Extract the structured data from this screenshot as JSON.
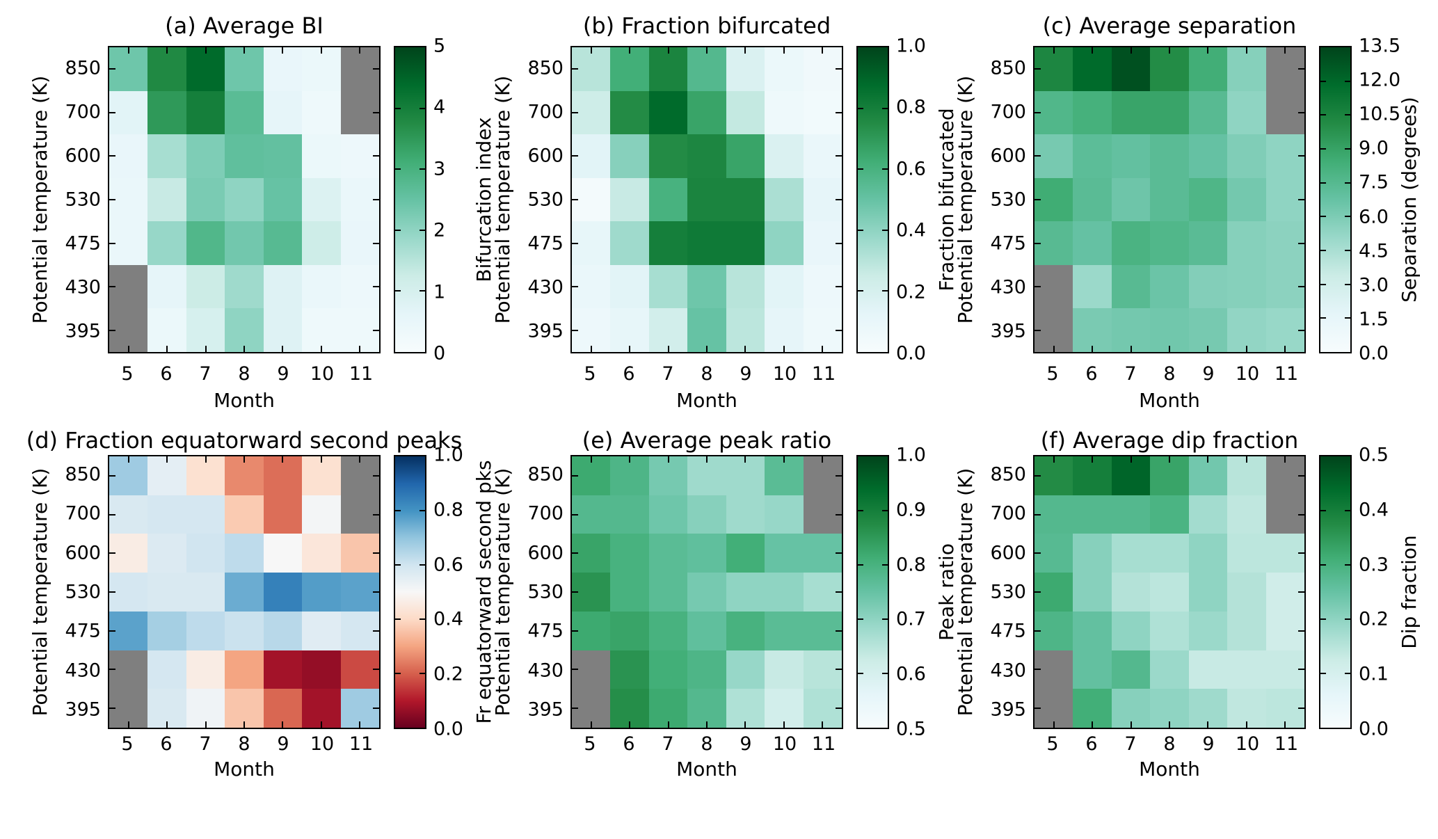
{
  "figure": {
    "background": "#ffffff",
    "axis_color": "#000000",
    "missing_color": "#7f7f7f",
    "xlabel": "Month",
    "ylabel": "Potential temperature (K)",
    "month_labels": [
      "5",
      "6",
      "7",
      "8",
      "9",
      "10",
      "11"
    ],
    "theta_labels": [
      "850",
      "700",
      "600",
      "530",
      "475",
      "430",
      "395"
    ],
    "months": [
      5,
      6,
      7,
      8,
      9,
      10,
      11
    ],
    "theta_levels": [
      850,
      700,
      600,
      530,
      475,
      430,
      395
    ]
  },
  "colormaps": {
    "BuGn": {
      "positions": [
        0,
        0.125,
        0.25,
        0.375,
        0.5,
        0.625,
        0.75,
        0.875,
        1
      ],
      "colors": [
        "#f7fcfd",
        "#e5f5f9",
        "#ccece6",
        "#99d8c9",
        "#66c2a4",
        "#41ae76",
        "#238b45",
        "#006d2c",
        "#00441b"
      ]
    },
    "RdBu": {
      "positions": [
        0,
        0.1,
        0.2,
        0.3,
        0.4,
        0.5,
        0.6,
        0.7,
        0.8,
        0.9,
        1
      ],
      "colors": [
        "#67001f",
        "#b2182b",
        "#d6604d",
        "#f4a582",
        "#fddbc7",
        "#f7f7f7",
        "#d1e5f0",
        "#92c5de",
        "#4393c3",
        "#2166ac",
        "#053061"
      ]
    }
  },
  "chart_data": [
    {
      "type": "heatmap",
      "panel": "a",
      "title": "(a) Average BI",
      "colorbar_label": "Bifurcation index",
      "cmap": "BuGn",
      "vmin": 0,
      "vmax": 5,
      "colorbar_tick_values": [
        0,
        1,
        2,
        3,
        4,
        5
      ],
      "colorbar_tick_labels": [
        "0",
        "1",
        "2",
        "3",
        "4",
        "5"
      ],
      "x_categories": [
        5,
        6,
        7,
        8,
        9,
        10,
        11
      ],
      "y_categories": [
        850,
        700,
        600,
        530,
        475,
        430,
        395
      ],
      "values": [
        [
          2.4,
          3.8,
          4.4,
          2.4,
          0.5,
          0.4,
          null
        ],
        [
          0.7,
          3.5,
          4.0,
          2.7,
          0.6,
          0.3,
          null
        ],
        [
          0.5,
          1.7,
          2.2,
          2.6,
          2.55,
          0.4,
          0.35
        ],
        [
          0.45,
          1.3,
          2.25,
          2.0,
          2.5,
          0.85,
          0.45
        ],
        [
          0.45,
          1.9,
          2.85,
          2.35,
          2.75,
          1.2,
          0.5
        ],
        [
          null,
          0.6,
          1.25,
          1.8,
          0.8,
          0.45,
          0.35
        ],
        [
          null,
          0.4,
          1.0,
          2.0,
          0.8,
          0.3,
          0.3
        ]
      ]
    },
    {
      "type": "heatmap",
      "panel": "b",
      "title": "(b) Fraction bifurcated",
      "colorbar_label": "Fraction bifurcated",
      "cmap": "BuGn",
      "vmin": 0,
      "vmax": 1,
      "colorbar_tick_values": [
        0,
        0.2,
        0.4,
        0.6,
        0.8,
        1
      ],
      "colorbar_tick_labels": [
        "0.0",
        "0.2",
        "0.4",
        "0.6",
        "0.8",
        "1.0"
      ],
      "x_categories": [
        5,
        6,
        7,
        8,
        9,
        10,
        11
      ],
      "y_categories": [
        850,
        700,
        600,
        530,
        475,
        430,
        395
      ],
      "values": [
        [
          0.3,
          0.62,
          0.78,
          0.56,
          0.18,
          0.08,
          0.05
        ],
        [
          0.24,
          0.75,
          0.88,
          0.66,
          0.27,
          0.06,
          0.04
        ],
        [
          0.14,
          0.42,
          0.75,
          0.77,
          0.66,
          0.18,
          0.09
        ],
        [
          0.03,
          0.26,
          0.6,
          0.78,
          0.78,
          0.33,
          0.12
        ],
        [
          0.11,
          0.36,
          0.8,
          0.82,
          0.82,
          0.4,
          0.1
        ],
        [
          0.09,
          0.14,
          0.34,
          0.48,
          0.3,
          0.14,
          0.07
        ],
        [
          0.07,
          0.11,
          0.22,
          0.5,
          0.29,
          0.12,
          0.06
        ]
      ]
    },
    {
      "type": "heatmap",
      "panel": "c",
      "title": "(c) Average separation",
      "colorbar_label": "Separation (degrees)",
      "cmap": "BuGn",
      "vmin": 0,
      "vmax": 13.5,
      "colorbar_tick_values": [
        0,
        1.5,
        3,
        4.5,
        6,
        7.5,
        9,
        10.5,
        12,
        13.5
      ],
      "colorbar_tick_labels": [
        "0.0",
        "1.5",
        "3.0",
        "4.5",
        "6.0",
        "7.5",
        "9.0",
        "10.5",
        "12.0",
        "13.5"
      ],
      "x_categories": [
        5,
        6,
        7,
        8,
        9,
        10,
        11
      ],
      "y_categories": [
        850,
        700,
        600,
        530,
        475,
        430,
        395
      ],
      "values": [
        [
          10.4,
          11.9,
          13.0,
          10.1,
          8.4,
          5.7,
          null
        ],
        [
          7.7,
          8.2,
          8.9,
          8.9,
          7.4,
          5.4,
          null
        ],
        [
          6.2,
          7.2,
          6.9,
          7.3,
          6.8,
          5.9,
          5.4
        ],
        [
          8.5,
          7.3,
          6.5,
          7.3,
          7.8,
          6.3,
          5.4
        ],
        [
          7.4,
          6.8,
          8.0,
          7.7,
          7.3,
          5.7,
          5.5
        ],
        [
          null,
          5.0,
          7.4,
          6.6,
          5.8,
          5.7,
          5.5
        ],
        [
          null,
          6.1,
          6.3,
          6.4,
          6.2,
          5.3,
          5.1
        ]
      ]
    },
    {
      "type": "heatmap",
      "panel": "d",
      "title": "(d) Fraction equatorward second peaks",
      "colorbar_label": "Fr equatorward second pks",
      "cmap": "RdBu",
      "vmin": 0,
      "vmax": 1,
      "colorbar_tick_values": [
        0,
        0.2,
        0.4,
        0.6,
        0.8,
        1
      ],
      "colorbar_tick_labels": [
        "0.0",
        "0.2",
        "0.4",
        "0.6",
        "0.8",
        "1.0"
      ],
      "x_categories": [
        5,
        6,
        7,
        8,
        9,
        10,
        11
      ],
      "y_categories": [
        850,
        700,
        600,
        530,
        475,
        430,
        395
      ],
      "values": [
        [
          0.68,
          0.55,
          0.42,
          0.26,
          0.22,
          0.42,
          null
        ],
        [
          0.58,
          0.59,
          0.59,
          0.37,
          0.22,
          0.51,
          null
        ],
        [
          0.46,
          0.57,
          0.6,
          0.63,
          0.5,
          0.44,
          0.36
        ],
        [
          0.59,
          0.58,
          0.58,
          0.75,
          0.84,
          0.78,
          0.77
        ],
        [
          0.77,
          0.67,
          0.63,
          0.61,
          0.64,
          0.56,
          0.59
        ],
        [
          null,
          0.59,
          0.46,
          0.3,
          0.08,
          0.06,
          0.17
        ],
        [
          null,
          0.58,
          0.52,
          0.36,
          0.21,
          0.08,
          0.68
        ]
      ]
    },
    {
      "type": "heatmap",
      "panel": "e",
      "title": "(e) Average peak ratio",
      "colorbar_label": "Peak ratio",
      "cmap": "BuGn",
      "vmin": 0.5,
      "vmax": 1,
      "colorbar_tick_values": [
        0.5,
        0.6,
        0.7,
        0.8,
        0.9,
        1
      ],
      "colorbar_tick_labels": [
        "0.5",
        "0.6",
        "0.7",
        "0.8",
        "0.9",
        "1.0"
      ],
      "x_categories": [
        5,
        6,
        7,
        8,
        9,
        10,
        11
      ],
      "y_categories": [
        850,
        700,
        600,
        530,
        475,
        430,
        395
      ],
      "values": [
        [
          0.82,
          0.79,
          0.73,
          0.68,
          0.68,
          0.77,
          null
        ],
        [
          0.78,
          0.78,
          0.74,
          0.71,
          0.68,
          0.69,
          null
        ],
        [
          0.83,
          0.8,
          0.77,
          0.76,
          0.81,
          0.75,
          0.75
        ],
        [
          0.86,
          0.8,
          0.77,
          0.73,
          0.7,
          0.7,
          0.67
        ],
        [
          0.82,
          0.83,
          0.8,
          0.76,
          0.8,
          0.77,
          0.77
        ],
        [
          null,
          0.86,
          0.81,
          0.79,
          0.69,
          0.63,
          0.65
        ],
        [
          null,
          0.87,
          0.82,
          0.78,
          0.66,
          0.61,
          0.66
        ]
      ]
    },
    {
      "type": "heatmap",
      "panel": "f",
      "title": "(f) Average dip fraction",
      "colorbar_label": "Dip fraction",
      "cmap": "BuGn",
      "vmin": 0,
      "vmax": 0.5,
      "colorbar_tick_values": [
        0,
        0.1,
        0.2,
        0.3,
        0.4,
        0.5
      ],
      "colorbar_tick_labels": [
        "0.0",
        "0.1",
        "0.2",
        "0.3",
        "0.4",
        "0.5"
      ],
      "x_categories": [
        5,
        6,
        7,
        8,
        9,
        10,
        11
      ],
      "y_categories": [
        850,
        700,
        600,
        530,
        475,
        430,
        395
      ],
      "values": [
        [
          0.375,
          0.4,
          0.45,
          0.33,
          0.235,
          0.15,
          null
        ],
        [
          0.28,
          0.28,
          0.28,
          0.295,
          0.175,
          0.14,
          null
        ],
        [
          0.275,
          0.21,
          0.17,
          0.17,
          0.2,
          0.145,
          0.145
        ],
        [
          0.32,
          0.21,
          0.155,
          0.145,
          0.2,
          0.155,
          0.115
        ],
        [
          0.29,
          0.255,
          0.2,
          0.16,
          0.185,
          0.155,
          0.115
        ],
        [
          null,
          0.255,
          0.28,
          0.185,
          0.13,
          0.13,
          0.13
        ],
        [
          null,
          0.31,
          0.21,
          0.2,
          0.18,
          0.14,
          0.145
        ]
      ]
    }
  ]
}
